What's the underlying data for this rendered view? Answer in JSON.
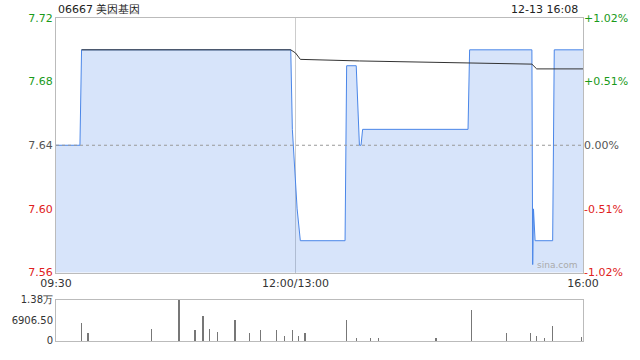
{
  "chart_data": [
    {
      "type": "line",
      "title": "06667 美因基因",
      "subtitle": "12-13 16:08",
      "annotations": [
        {
          "text": "sina.com"
        }
      ],
      "xlim": [
        0,
        330
      ],
      "xticks": [
        {
          "value": 0,
          "label": "09:30"
        },
        {
          "value": 150,
          "label": "12:00/13:00"
        },
        {
          "value": 330,
          "label": "16:00"
        }
      ],
      "ylim": [
        7.56,
        7.72
      ],
      "yticks": [
        7.56,
        {
          "value": 7.6,
          "label": "7.60"
        },
        7.64,
        7.68,
        7.72
      ],
      "y2lim": [
        -1.02,
        1.02
      ],
      "y2ticks": [
        {
          "value": -1.02,
          "label": "-1.02%"
        },
        {
          "value": -0.51,
          "label": "-0.51%"
        },
        {
          "value": 0,
          "label": "0.00%"
        },
        {
          "value": 0.51,
          "label": "+0.51%"
        },
        {
          "value": 1.02,
          "label": "+1.02%"
        }
      ],
      "reference_line": 7.64,
      "grid": "x",
      "series": [
        {
          "type": "area",
          "color": "#4a86e8",
          "x": [
            0,
            15,
            16,
            147,
            148,
            151,
            153,
            181,
            182,
            188,
            190,
            191,
            192,
            258,
            259,
            298,
            298.5,
            299,
            300,
            301,
            311,
            312,
            330
          ],
          "values": [
            7.64,
            7.64,
            7.7,
            7.7,
            7.65,
            7.6,
            7.58,
            7.58,
            7.69,
            7.69,
            7.64,
            7.64,
            7.65,
            7.65,
            7.7,
            7.7,
            7.565,
            7.6,
            7.58,
            7.58,
            7.58,
            7.7,
            7.7
          ]
        },
        {
          "type": "line",
          "color": "#333333",
          "x": [
            16,
            147,
            150,
            153,
            190,
            240,
            298,
            301,
            330
          ],
          "values": [
            7.7,
            7.7,
            7.698,
            7.694,
            7.693,
            7.692,
            7.691,
            7.688,
            7.688
          ]
        }
      ]
    },
    {
      "type": "bar",
      "tick_labels": "y",
      "color": "#777777",
      "xlim": [
        0,
        330
      ],
      "ylim": [
        0,
        13800
      ],
      "yticks": [
        0,
        {
          "value": 6906.5,
          "label": "6906.50"
        },
        {
          "value": 13800,
          "label": "1.38万"
        }
      ],
      "x": [
        16,
        20,
        60,
        77,
        87,
        92,
        96,
        101,
        112,
        121,
        128,
        138,
        143,
        148,
        152,
        156,
        182,
        188,
        197,
        202,
        238,
        260,
        282,
        297,
        301,
        306,
        311,
        329
      ],
      "values": [
        5900,
        2600,
        3900,
        13800,
        3600,
        8500,
        3900,
        3000,
        6900,
        2600,
        3600,
        3600,
        1600,
        3600,
        1600,
        2600,
        6900,
        1000,
        1000,
        1000,
        1000,
        10500,
        2600,
        2600,
        1600,
        1000,
        4900,
        1300
      ]
    }
  ]
}
